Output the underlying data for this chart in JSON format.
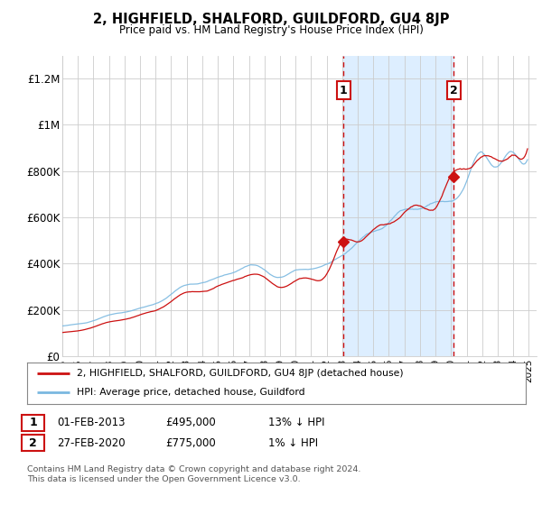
{
  "title": "2, HIGHFIELD, SHALFORD, GUILDFORD, GU4 8JP",
  "subtitle": "Price paid vs. HM Land Registry's House Price Index (HPI)",
  "xlim_start": 1995.0,
  "xlim_end": 2025.5,
  "ylim": [
    0,
    1300000
  ],
  "yticks": [
    0,
    200000,
    400000,
    600000,
    800000,
    1000000,
    1200000
  ],
  "ytick_labels": [
    "£0",
    "£200K",
    "£400K",
    "£600K",
    "£800K",
    "£1M",
    "£1.2M"
  ],
  "xticks": [
    1995,
    1996,
    1997,
    1998,
    1999,
    2000,
    2001,
    2002,
    2003,
    2004,
    2005,
    2006,
    2007,
    2008,
    2009,
    2010,
    2011,
    2012,
    2013,
    2014,
    2015,
    2016,
    2017,
    2018,
    2019,
    2020,
    2021,
    2022,
    2023,
    2024,
    2025
  ],
  "sale1_x": 2013.08,
  "sale1_y": 495000,
  "sale1_label": "1",
  "sale2_x": 2020.16,
  "sale2_y": 775000,
  "sale2_label": "2",
  "vline1_x": 2013.08,
  "vline2_x": 2020.16,
  "shade_start": 2013.08,
  "shade_end": 2020.16,
  "hpi_color": "#7ab8e0",
  "price_color": "#cc1111",
  "vline_color": "#cc1111",
  "shade_color": "#ddeeff",
  "legend_entries": [
    "2, HIGHFIELD, SHALFORD, GUILDFORD, GU4 8JP (detached house)",
    "HPI: Average price, detached house, Guildford"
  ],
  "table_row1": [
    "1",
    "01-FEB-2013",
    "£495,000",
    "13% ↓ HPI"
  ],
  "table_row2": [
    "2",
    "27-FEB-2020",
    "£775,000",
    "1% ↓ HPI"
  ],
  "footnote": "Contains HM Land Registry data © Crown copyright and database right 2024.\nThis data is licensed under the Open Government Licence v3.0.",
  "background_color": "#ffffff",
  "plot_bg_color": "#ffffff"
}
